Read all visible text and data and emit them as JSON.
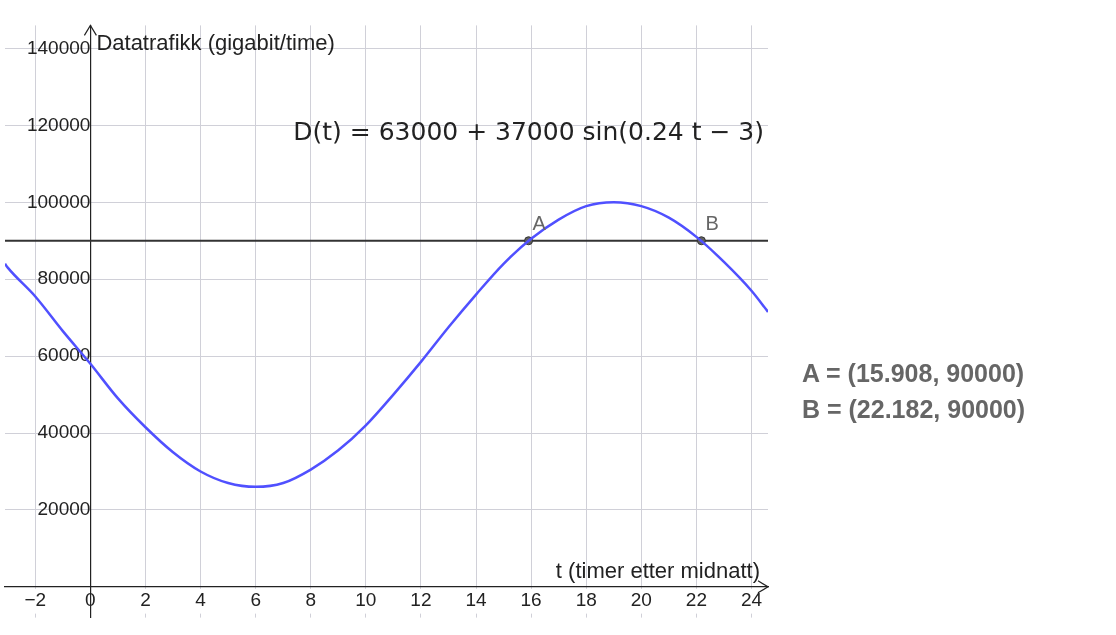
{
  "chart_data": {
    "type": "line",
    "xlabel": "t (timer etter midnatt)",
    "ylabel": "Datatrafikk (gigabit/time)",
    "annotations": [
      "D(t) = 63000 + 37000 sin(0.24 t − 3)",
      "A = (15.908, 90000)",
      "B = (22.182, 90000)"
    ],
    "xlim": [
      -3.1,
      24.6
    ],
    "ylim": [
      -8000,
      146000
    ],
    "xticks": [
      {
        "value": -2,
        "label": "−2"
      },
      0,
      2,
      4,
      6,
      8,
      10,
      12,
      14,
      16,
      18,
      20,
      22,
      24
    ],
    "yticks": [
      20000,
      40000,
      60000,
      80000,
      100000,
      120000,
      140000
    ],
    "grid": true,
    "legend": false,
    "ref_lines": [
      {
        "axis": "y",
        "value": 90000,
        "color": "#333333"
      }
    ],
    "series": [
      {
        "color": "#5050ff",
        "marker": "none",
        "x": [
          -3.1,
          -3,
          -2,
          -1,
          0,
          1,
          2,
          3,
          4,
          5,
          6,
          7,
          8,
          9,
          10,
          11,
          12,
          13,
          14,
          15,
          16,
          17,
          18,
          19,
          20,
          21,
          22,
          23,
          24,
          24.6
        ],
        "values": [
          84000,
          83000,
          75500,
          66500,
          58000,
          49000,
          41500,
          35000,
          30000,
          27000,
          26000,
          27000,
          30500,
          35500,
          42000,
          50000,
          58500,
          67500,
          76000,
          84000,
          90500,
          95500,
          99000,
          100000,
          99000,
          96000,
          91000,
          84500,
          77000,
          71500
        ]
      },
      {
        "type": "scatter",
        "name": "A",
        "color": "#616161",
        "marker": "circle",
        "x": [
          15.908
        ],
        "values": [
          90000
        ]
      },
      {
        "type": "scatter",
        "name": "B",
        "color": "#616161",
        "marker": "circle",
        "x": [
          22.182
        ],
        "values": [
          90000
        ]
      }
    ]
  }
}
